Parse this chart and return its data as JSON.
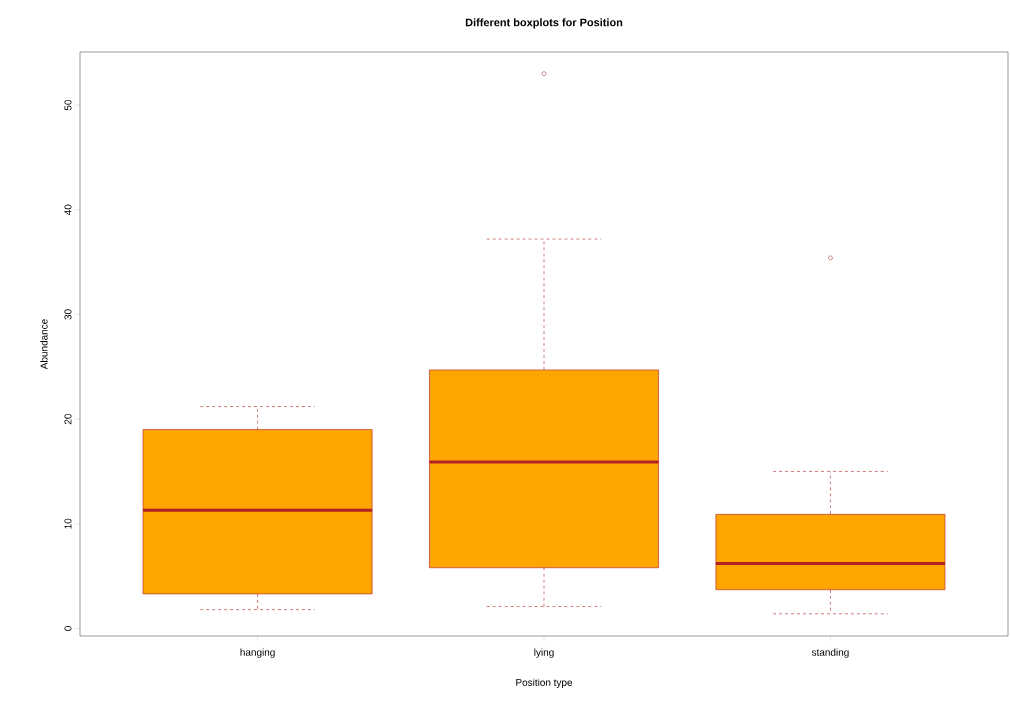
{
  "chart_data": {
    "type": "box",
    "title": "Different boxplots for Position",
    "xlabel": "Position type",
    "ylabel": "Abundance",
    "categories": [
      "hanging",
      "lying",
      "standing"
    ],
    "color": "#ffa500",
    "boxes": [
      {
        "low": 1.8,
        "q1": 3.3,
        "median": 11.3,
        "q3": 19.0,
        "high": 21.2
      },
      {
        "low": 2.1,
        "q1": 5.8,
        "median": 15.9,
        "q3": 24.7,
        "high": 37.2,
        "outliers": [
          53.0
        ]
      },
      {
        "low": 1.4,
        "q1": 3.7,
        "median": 6.2,
        "q3": 10.9,
        "high": 15.0,
        "outliers": [
          35.4
        ]
      }
    ],
    "ylim": [
      -0.72,
      55.07
    ],
    "yticks": [
      0,
      10,
      20,
      30,
      40,
      50
    ],
    "grid": false
  }
}
